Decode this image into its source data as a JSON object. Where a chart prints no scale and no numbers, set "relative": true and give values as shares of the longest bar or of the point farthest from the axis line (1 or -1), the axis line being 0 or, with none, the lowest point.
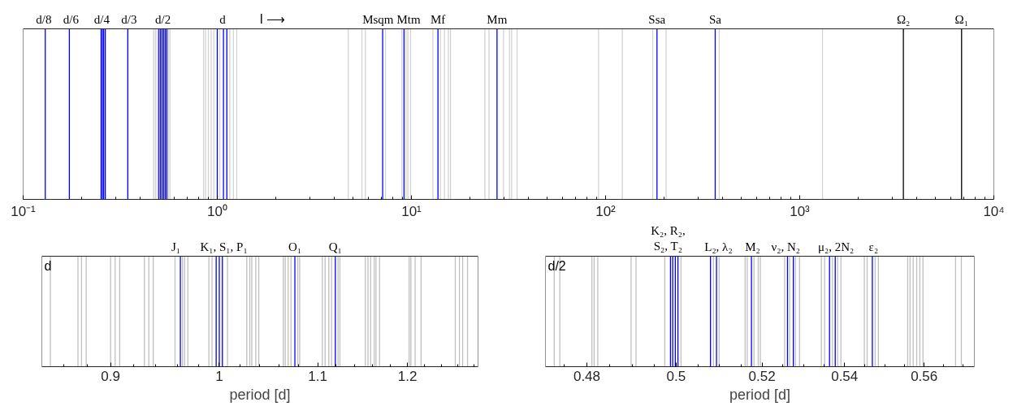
{
  "chart_data": [
    {
      "type": "bar",
      "relative": true,
      "log": "x",
      "grid": false,
      "tick_labels": "x",
      "xlim": [
        0.1,
        10000
      ],
      "xticks": [
        {
          "value": 0.1,
          "label": "10⁻¹"
        },
        {
          "value": 0.2,
          "label": null
        },
        {
          "value": 0.3,
          "label": null
        },
        {
          "value": 0.4,
          "label": null
        },
        {
          "value": 0.5,
          "label": null
        },
        {
          "value": 0.6,
          "label": null
        },
        {
          "value": 0.7,
          "label": null
        },
        {
          "value": 0.8,
          "label": null
        },
        {
          "value": 0.9,
          "label": null
        },
        {
          "value": 1,
          "label": "10⁰"
        },
        {
          "value": 2,
          "label": null
        },
        {
          "value": 3,
          "label": null
        },
        {
          "value": 4,
          "label": null
        },
        {
          "value": 5,
          "label": null
        },
        {
          "value": 6,
          "label": null
        },
        {
          "value": 7,
          "label": null
        },
        {
          "value": 8,
          "label": null
        },
        {
          "value": 9,
          "label": null
        },
        {
          "value": 10,
          "label": "10¹"
        },
        {
          "value": 20,
          "label": null
        },
        {
          "value": 30,
          "label": null
        },
        {
          "value": 40,
          "label": null
        },
        {
          "value": 50,
          "label": null
        },
        {
          "value": 60,
          "label": null
        },
        {
          "value": 70,
          "label": null
        },
        {
          "value": 80,
          "label": null
        },
        {
          "value": 90,
          "label": null
        },
        {
          "value": 100,
          "label": "10²"
        },
        {
          "value": 200,
          "label": null
        },
        {
          "value": 300,
          "label": null
        },
        {
          "value": 400,
          "label": null
        },
        {
          "value": 500,
          "label": null
        },
        {
          "value": 600,
          "label": null
        },
        {
          "value": 700,
          "label": null
        },
        {
          "value": 800,
          "label": null
        },
        {
          "value": 900,
          "label": null
        },
        {
          "value": 1000,
          "label": "10³"
        },
        {
          "value": 2000,
          "label": null
        },
        {
          "value": 3000,
          "label": null
        },
        {
          "value": 4000,
          "label": null
        },
        {
          "value": 5000,
          "label": null
        },
        {
          "value": 6000,
          "label": null
        },
        {
          "value": 7000,
          "label": null
        },
        {
          "value": 8000,
          "label": null
        },
        {
          "value": 9000,
          "label": null
        },
        {
          "value": 10000,
          "label": "10⁴"
        }
      ],
      "series": [
        {
          "color": "#d3d3d3",
          "x": [
            0.47,
            0.48,
            0.49,
            0.56,
            0.57,
            0.85,
            0.87,
            0.9,
            0.93,
            0.96,
            1.03,
            1.16,
            1.21,
            1.26,
            4.73,
            5.56,
            5.79,
            7.35,
            8.93,
            9.37,
            9.59,
            9.9,
            12.9,
            14.1,
            14.8,
            15.5,
            15.9,
            23.9,
            25.1,
            29.8,
            32.0,
            32.8,
            35.0,
            92,
            122,
            175,
            205,
            385,
            1310
          ],
          "values": [
            1,
            1,
            1,
            1,
            1,
            1,
            1,
            1,
            1,
            1,
            1,
            1,
            1,
            1,
            1,
            1,
            1,
            1,
            1,
            1,
            1,
            1,
            1,
            1,
            1,
            1,
            1,
            1,
            1,
            1,
            1,
            1,
            1,
            1,
            1,
            1,
            1,
            1,
            1
          ]
        },
        {
          "name": "d/8",
          "color": "#0000ff",
          "x": [
            0.13
          ],
          "values": [
            1
          ]
        },
        {
          "name": "d/6",
          "color": "#0000ff",
          "x": [
            0.173
          ],
          "values": [
            1
          ]
        },
        {
          "name": "d/4",
          "color": "#0000ff",
          "x": [
            0.252,
            0.256,
            0.26,
            0.265
          ],
          "values": [
            1,
            1,
            1,
            1
          ]
        },
        {
          "name": "d/3",
          "color": "#0000ff",
          "x": [
            0.346
          ],
          "values": [
            1
          ]
        },
        {
          "name": "d/2",
          "color": "#0000ff",
          "x": [
            0.5,
            0.51,
            0.52,
            0.53,
            0.54,
            0.55
          ],
          "values": [
            1,
            1,
            1,
            1,
            1,
            1
          ]
        },
        {
          "name": "d",
          "color": "#0000ff",
          "x": [
            1.0,
            1.076,
            1.12
          ],
          "values": [
            1,
            1,
            1
          ]
        },
        {
          "name": "Msqm",
          "color": "#0000ff",
          "x": [
            7.11
          ],
          "values": [
            1
          ]
        },
        {
          "name": "Mtm",
          "color": "#0000ff",
          "x": [
            9.16
          ],
          "values": [
            1
          ]
        },
        {
          "name": "Mf",
          "color": "#0000ff",
          "x": [
            13.7
          ],
          "values": [
            1
          ]
        },
        {
          "name": "Mm",
          "color": "#0000ff",
          "x": [
            27.6
          ],
          "values": [
            1
          ]
        },
        {
          "name": "Ssa",
          "color": "#0000ff",
          "x": [
            184
          ],
          "values": [
            1
          ]
        },
        {
          "name": "Sa",
          "color": "#0000ff",
          "x": [
            367
          ],
          "values": [
            1
          ]
        },
        {
          "name": "Ω₂",
          "color": "#000000",
          "x": [
            3420
          ],
          "values": [
            1
          ]
        },
        {
          "name": "Ω₁",
          "color": "#000000",
          "x": [
            6820
          ],
          "values": [
            1
          ]
        }
      ],
      "annotations": [
        "l ⟶"
      ]
    },
    {
      "type": "bar",
      "relative": true,
      "log": "x",
      "grid": false,
      "tick_labels": "x",
      "xlabel": "period [d]",
      "xlim": [
        0.842,
        1.285
      ],
      "xticks": [
        {
          "value": 0.86,
          "label": null
        },
        {
          "value": 0.88,
          "label": null
        },
        0.9,
        {
          "value": 0.92,
          "label": null
        },
        {
          "value": 0.94,
          "label": null
        },
        {
          "value": 0.96,
          "label": null
        },
        {
          "value": 0.98,
          "label": null
        },
        1,
        {
          "value": 1.02,
          "label": null
        },
        {
          "value": 1.04,
          "label": null
        },
        {
          "value": 1.06,
          "label": null
        },
        {
          "value": 1.08,
          "label": null
        },
        1.1,
        {
          "value": 1.12,
          "label": null
        },
        {
          "value": 1.14,
          "label": null
        },
        {
          "value": 1.16,
          "label": null
        },
        {
          "value": 1.18,
          "label": null
        },
        1.2,
        {
          "value": 1.22,
          "label": null
        },
        {
          "value": 1.24,
          "label": null
        },
        {
          "value": 1.26,
          "label": null
        },
        {
          "value": 1.28,
          "label": null
        }
      ],
      "series": [
        {
          "color": "#bfbfbf",
          "x": [
            0.849,
            0.872,
            0.875,
            0.879,
            0.9,
            0.904,
            0.908,
            0.93,
            0.934,
            0.938,
            0.958,
            0.965,
            0.967,
            0.97,
            0.99,
            0.993,
            1.008,
            1.027,
            1.03,
            1.032,
            1.036,
            1.039,
            1.064,
            1.066,
            1.069,
            1.072,
            1.079,
            1.081,
            1.105,
            1.108,
            1.112,
            1.115,
            1.122,
            1.124,
            1.152,
            1.155,
            1.158,
            1.162,
            1.164,
            1.168,
            1.202,
            1.204,
            1.209,
            1.216,
            1.257,
            1.262,
            1.266,
            1.272
          ],
          "values": [
            1,
            1,
            1,
            1,
            1,
            1,
            1,
            1,
            1,
            1,
            1,
            1,
            1,
            1,
            1,
            1,
            1,
            1,
            1,
            1,
            1,
            1,
            1,
            1,
            1,
            1,
            1,
            1,
            1,
            1,
            1,
            1,
            1,
            1,
            1,
            1,
            1,
            1,
            1,
            1,
            1,
            1,
            1,
            1,
            1,
            1,
            1,
            1
          ]
        },
        {
          "name": "J₁",
          "color": "#0000ff",
          "x": [
            0.963
          ],
          "values": [
            1
          ]
        },
        {
          "name": "K₁, S₁, P₁",
          "color": "#0000ff",
          "x": [
            0.997,
            1.0,
            1.003
          ],
          "values": [
            1,
            1,
            1
          ]
        },
        {
          "name": "O₁",
          "color": "#0000ff",
          "x": [
            1.076
          ],
          "values": [
            1
          ]
        },
        {
          "name": "Q₁",
          "color": "#0000ff",
          "x": [
            1.119
          ],
          "values": [
            1
          ]
        }
      ],
      "annotations": [
        "d"
      ]
    },
    {
      "type": "bar",
      "relative": true,
      "log": "x",
      "grid": false,
      "tick_labels": "x",
      "xlabel": "period [d]",
      "xlim": [
        0.471,
        0.573
      ],
      "xticks": [
        {
          "value": 0.475,
          "label": null
        },
        0.48,
        {
          "value": 0.485,
          "label": null
        },
        {
          "value": 0.49,
          "label": null
        },
        {
          "value": 0.495,
          "label": null
        },
        0.5,
        {
          "value": 0.505,
          "label": null
        },
        {
          "value": 0.51,
          "label": null
        },
        {
          "value": 0.515,
          "label": null
        },
        0.52,
        {
          "value": 0.525,
          "label": null
        },
        {
          "value": 0.53,
          "label": null
        },
        {
          "value": 0.535,
          "label": null
        },
        0.54,
        {
          "value": 0.545,
          "label": null
        },
        {
          "value": 0.55,
          "label": null
        },
        {
          "value": 0.555,
          "label": null
        },
        0.56,
        {
          "value": 0.565,
          "label": null
        },
        {
          "value": 0.57,
          "label": null
        }
      ],
      "series": [
        {
          "color": "#bfbfbf",
          "x": [
            0.4729,
            0.4741,
            0.4811,
            0.4816,
            0.4824,
            0.4898,
            0.4909,
            0.4974,
            0.5011,
            0.5086,
            0.5099,
            0.516,
            0.5165,
            0.5181,
            0.5191,
            0.5196,
            0.5254,
            0.5266,
            0.528,
            0.529,
            0.5343,
            0.5351,
            0.537,
            0.5383,
            0.5391,
            0.5449,
            0.5456,
            0.5476,
            0.5484,
            0.5558,
            0.5564,
            0.5572,
            0.5581,
            0.5589,
            0.5597,
            0.5681,
            0.5696
          ],
          "values": [
            1,
            1,
            1,
            1,
            1,
            1,
            1,
            1,
            1,
            1,
            1,
            1,
            1,
            1,
            1,
            1,
            1,
            1,
            1,
            1,
            1,
            1,
            1,
            1,
            1,
            1,
            1,
            1,
            1,
            1,
            1,
            1,
            1,
            1,
            1,
            1,
            1
          ]
        },
        {
          "name": "K₂, R₂,\nS₂, T₂",
          "color": "#0000ff",
          "x": [
            0.4987,
            0.4992,
            0.4998,
            0.5004
          ],
          "values": [
            1,
            1,
            1,
            1
          ]
        },
        {
          "name": "L₂, λ₂",
          "color": "#0000ff",
          "x": [
            0.5079,
            0.5093
          ],
          "values": [
            1,
            1
          ]
        },
        {
          "name": "M₂",
          "color": "#0000ff",
          "x": [
            0.5175
          ],
          "values": [
            1
          ]
        },
        {
          "name": "ν₂, N₂",
          "color": "#0000ff",
          "x": [
            0.5261,
            0.5275
          ],
          "values": [
            1,
            1
          ]
        },
        {
          "name": "μ₂, 2N₂",
          "color": "#0000ff",
          "x": [
            0.5363,
            0.5377
          ],
          "values": [
            1,
            1
          ]
        },
        {
          "name": "ε₂",
          "color": "#0000ff",
          "x": [
            0.5469
          ],
          "values": [
            1
          ]
        }
      ],
      "annotations": [
        "d/2"
      ]
    }
  ]
}
